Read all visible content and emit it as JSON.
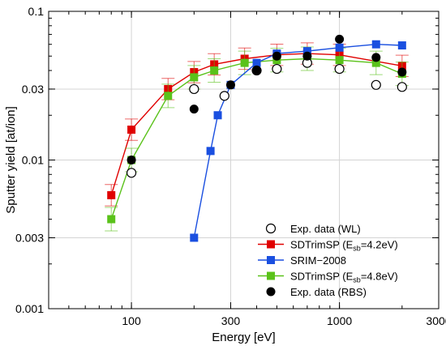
{
  "chart_data": {
    "type": "line",
    "xlabel": "Energy [eV]",
    "ylabel": "Sputter yield [at/ion]",
    "x_scale": "log",
    "y_scale": "log",
    "xlim": [
      40,
      3000
    ],
    "ylim": [
      0.001,
      0.1
    ],
    "x_tick_labels": [
      {
        "value": 100,
        "label": "100"
      },
      {
        "value": 300,
        "label": "300"
      },
      {
        "value": 1000,
        "label": "1000"
      },
      {
        "value": 3000,
        "label": "3000"
      }
    ],
    "y_tick_labels": [
      {
        "value": 0.001,
        "label": "0.001"
      },
      {
        "value": 0.003,
        "label": "0.003"
      },
      {
        "value": 0.01,
        "label": "0.01"
      },
      {
        "value": 0.03,
        "label": "0.03"
      },
      {
        "value": 0.1,
        "label": "0.1"
      }
    ],
    "legend_position": "bottom-right",
    "series": [
      {
        "name": "Exp. data (WL)",
        "legend_label": "Exp. data (WL)",
        "style": "open-circle",
        "color": "#000000",
        "line": false,
        "x": [
          100,
          200,
          280,
          400,
          500,
          700,
          1000,
          1500,
          2000
        ],
        "y": [
          0.0082,
          0.03,
          0.027,
          0.04,
          0.041,
          0.045,
          0.041,
          0.032,
          0.031
        ]
      },
      {
        "name": "SDTrimSP (Esb=4.2eV)",
        "legend_label": "SDTrimSP (E",
        "legend_sub": "sb",
        "legend_tail": "=4.2eV)",
        "style": "square",
        "color": "#e00000",
        "line": true,
        "error_bars": true,
        "x": [
          80,
          100,
          150,
          200,
          250,
          350,
          500,
          700,
          1000,
          2000
        ],
        "y": [
          0.0058,
          0.016,
          0.03,
          0.039,
          0.044,
          0.048,
          0.051,
          0.052,
          0.051,
          0.043
        ],
        "yerr_rel": 0.18
      },
      {
        "name": "SRIM-2008",
        "legend_label": "SRIM−2008",
        "style": "square",
        "color": "#1a4fe0",
        "line": true,
        "x": [
          200,
          240,
          260,
          300,
          400,
          500,
          700,
          1000,
          1500,
          2000
        ],
        "y": [
          0.003,
          0.0115,
          0.02,
          0.032,
          0.045,
          0.052,
          0.054,
          0.057,
          0.06,
          0.059
        ]
      },
      {
        "name": "SDTrimSP (Esb=4.8eV)",
        "legend_label": "SDTrimSP (E",
        "legend_sub": "sb",
        "legend_tail": "=4.8eV)",
        "style": "square",
        "color": "#5ac21a",
        "line": true,
        "error_bars": true,
        "x": [
          80,
          100,
          150,
          200,
          250,
          350,
          500,
          700,
          1000,
          1500,
          2000
        ],
        "y": [
          0.004,
          0.01,
          0.027,
          0.036,
          0.04,
          0.045,
          0.047,
          0.048,
          0.047,
          0.045,
          0.038
        ],
        "yerr_rel": 0.2
      },
      {
        "name": "Exp. data (RBS)",
        "legend_label": "Exp. data (RBS)",
        "style": "filled-circle",
        "color": "#000000",
        "line": false,
        "x": [
          100,
          200,
          300,
          400,
          500,
          700,
          1000,
          1500,
          2000
        ],
        "y": [
          0.01,
          0.022,
          0.032,
          0.04,
          0.05,
          0.05,
          0.065,
          0.049,
          0.039
        ]
      }
    ]
  }
}
